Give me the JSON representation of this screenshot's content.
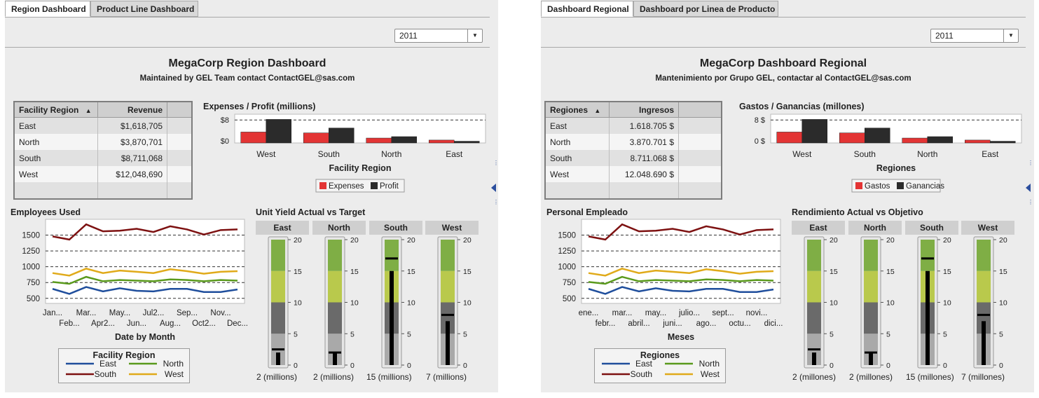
{
  "panels": [
    {
      "lang": "en",
      "tabs": [
        "Region Dashboard",
        "Product Line Dashboard"
      ],
      "year": "2011",
      "title": "MegaCorp Region Dashboard",
      "subtitle": "Maintained by GEL Team contact ContactGEL@sas.com",
      "table": {
        "headers": [
          "Facility Region",
          "Revenue"
        ],
        "rows": [
          [
            "East",
            "$1,618,705"
          ],
          [
            "North",
            "$3,870,701"
          ],
          [
            "South",
            "$8,711,068"
          ],
          [
            "West",
            "$12,048,690"
          ]
        ]
      },
      "bar_title": "Expenses / Profit (millions)",
      "bar_yticks": [
        "$8",
        "$0"
      ],
      "bar_xlabel": "Facility Region",
      "bar_legend": [
        "Expenses",
        "Profit"
      ],
      "line_title": "Employees Used",
      "line_xticks_top": [
        "Jan...",
        "Mar...",
        "May...",
        "Jul2...",
        "Sep...",
        "Nov..."
      ],
      "line_xticks_bottom": [
        "Feb...",
        "Apr2...",
        "Jun...",
        "Aug...",
        "Oct2...",
        "Dec..."
      ],
      "line_xlabel": "Date by Month",
      "line_legend_title": "Facility Region",
      "line_legend": [
        "East",
        "North",
        "South",
        "West"
      ],
      "gauge_title": "Unit Yield Actual vs Target",
      "gauge_heads": [
        "East",
        "North",
        "South",
        "West"
      ],
      "gauge_caps": [
        "2 (millions)",
        "2 (millions)",
        "15 (millions)",
        "7 (millions)"
      ]
    },
    {
      "lang": "es",
      "tabs": [
        "Dashboard Regional",
        "Dashboard por Linea de Producto"
      ],
      "year": "2011",
      "title": "MegaCorp Dashboard Regional",
      "subtitle": "Mantenimiento por Grupo GEL, contactar al ContactGEL@sas.com",
      "table": {
        "headers": [
          "Regiones",
          "Ingresos"
        ],
        "rows": [
          [
            "East",
            "1.618.705 $"
          ],
          [
            "North",
            "3.870.701 $"
          ],
          [
            "South",
            "8.711.068 $"
          ],
          [
            "West",
            "12.048.690 $"
          ]
        ]
      },
      "bar_title": "Gastos / Ganancias (millones)",
      "bar_yticks": [
        "8 $",
        "0 $"
      ],
      "bar_xlabel": "Regiones",
      "bar_legend": [
        "Gastos",
        "Ganancias"
      ],
      "line_title": "Personal Empleado",
      "line_xticks_top": [
        "ene...",
        "mar...",
        "may...",
        "julio...",
        "sept...",
        "novi..."
      ],
      "line_xticks_bottom": [
        "febr...",
        "abril...",
        "juni...",
        "ago...",
        "octu...",
        "dici..."
      ],
      "line_xlabel": "Meses",
      "line_legend_title": "Regiones",
      "line_legend": [
        "East",
        "North",
        "South",
        "West"
      ],
      "gauge_title": "Rendimiento Actual vs Objetivo",
      "gauge_heads": [
        "East",
        "North",
        "South",
        "West"
      ],
      "gauge_caps": [
        "2 (millones)",
        "2 (millones)",
        "15 (millones)",
        "7 (millones)"
      ]
    }
  ],
  "chart_data": [
    {
      "type": "bar",
      "categories": [
        "West",
        "South",
        "North",
        "East"
      ],
      "series": [
        {
          "name": "Expenses",
          "values": [
            3.8,
            3.5,
            1.7,
            1.0
          ]
        },
        {
          "name": "Profit",
          "values": [
            8.2,
            5.2,
            2.2,
            0.6
          ]
        }
      ],
      "ylim": [
        0,
        10
      ],
      "reference_line": 8
    },
    {
      "type": "line",
      "x": [
        "Jan",
        "Feb",
        "Mar",
        "Apr",
        "May",
        "Jun",
        "Jul",
        "Aug",
        "Sep",
        "Oct",
        "Nov",
        "Dec"
      ],
      "series": [
        {
          "name": "East",
          "values": [
            650,
            570,
            680,
            610,
            660,
            620,
            610,
            650,
            650,
            600,
            600,
            640
          ]
        },
        {
          "name": "North",
          "values": [
            760,
            730,
            840,
            770,
            790,
            780,
            770,
            800,
            790,
            770,
            790,
            780
          ]
        },
        {
          "name": "South",
          "values": [
            1480,
            1430,
            1670,
            1560,
            1570,
            1600,
            1550,
            1640,
            1590,
            1510,
            1580,
            1590
          ]
        },
        {
          "name": "West",
          "values": [
            900,
            860,
            970,
            900,
            940,
            920,
            900,
            960,
            930,
            890,
            920,
            930
          ]
        }
      ],
      "yticks": [
        500,
        750,
        1000,
        1250,
        1500
      ],
      "ylim": [
        420,
        1750
      ]
    },
    {
      "type": "bar",
      "categories": [
        "East",
        "North",
        "South",
        "West"
      ],
      "series": [
        {
          "name": "actual",
          "values": [
            2,
            2,
            15,
            7
          ]
        },
        {
          "name": "target",
          "values": [
            2.5,
            2,
            17,
            8
          ]
        }
      ],
      "ylim": [
        0,
        20
      ],
      "yticks": [
        0,
        5,
        10,
        15,
        20
      ],
      "bands": [
        [
          0,
          5,
          "#a9a9a9"
        ],
        [
          5,
          10,
          "#6a6a6a"
        ],
        [
          10,
          15,
          "#b9c94c"
        ],
        [
          15,
          20,
          "#7fae45"
        ]
      ]
    }
  ],
  "colors": {
    "expenses": "#e33434",
    "profit": "#2b2b2b",
    "east": "#1f4e9c",
    "north": "#5a9a1c",
    "south": "#7d1111",
    "west": "#e0aa1a"
  }
}
